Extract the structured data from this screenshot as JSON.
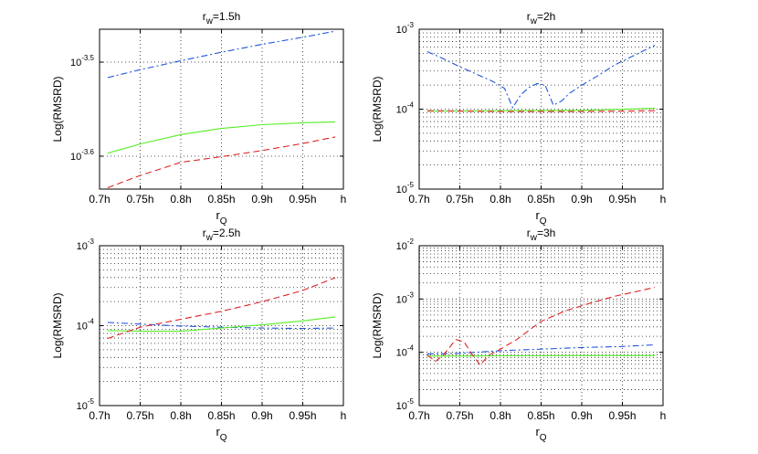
{
  "figure": {
    "ylabel": "Log(RMSRD)",
    "xlabel_main": "r",
    "xlabel_sub": "Q",
    "title_main": "r",
    "title_sub": "w"
  },
  "colors": {
    "blue": "#2255dd",
    "green": "#55ee22",
    "red": "#dd2222",
    "grid": "#222222",
    "axis": "#000000"
  },
  "chart_data": [
    {
      "type": "line",
      "title": "rw=1.5h",
      "title_sub_value": "=1.5h",
      "yscale": "log",
      "xlim": [
        0.7,
        1.0
      ],
      "ylim": [
        -3.635,
        -3.465
      ],
      "xticks": [
        0.7,
        0.75,
        0.8,
        0.85,
        0.9,
        0.95,
        1.0
      ],
      "xticklabels": [
        "0.7h",
        "0.75h",
        "0.8h",
        "0.85h",
        "0.9h",
        "0.95h",
        "h"
      ],
      "yticks": [
        {
          "value": -3.5,
          "base": "10",
          "exp": "-3.5"
        },
        {
          "value": -3.6,
          "base": "10",
          "exp": "-3.6"
        }
      ],
      "ygrid_minor": false,
      "xlabel": "rQ",
      "ylabel": "Log(RMSRD)",
      "series": [
        {
          "name": "blue",
          "style": "dashdot",
          "color": "#2255dd",
          "x": [
            0.71,
            0.75,
            0.8,
            0.85,
            0.9,
            0.95,
            0.99
          ],
          "y": [
            -3.5165,
            -3.508,
            -3.4985,
            -3.4895,
            -3.481,
            -3.4735,
            -3.467
          ]
        },
        {
          "name": "green",
          "style": "solid",
          "color": "#55ee22",
          "x": [
            0.71,
            0.75,
            0.8,
            0.85,
            0.9,
            0.95,
            0.99
          ],
          "y": [
            -3.5968,
            -3.587,
            -3.577,
            -3.5705,
            -3.5665,
            -3.5645,
            -3.5635
          ]
        },
        {
          "name": "red",
          "style": "dashed",
          "color": "#dd2222",
          "x": [
            0.71,
            0.75,
            0.8,
            0.85,
            0.9,
            0.95,
            0.99
          ],
          "y": [
            -3.6335,
            -3.6205,
            -3.6065,
            -3.6005,
            -3.594,
            -3.5865,
            -3.5795
          ]
        }
      ]
    },
    {
      "type": "line",
      "title": "rw=2h",
      "title_sub_value": "=2h",
      "yscale": "log",
      "xlim": [
        0.7,
        1.0
      ],
      "ylim": [
        -5,
        -3
      ],
      "xticks": [
        0.7,
        0.75,
        0.8,
        0.85,
        0.9,
        0.95,
        1.0
      ],
      "xticklabels": [
        "0.7h",
        "0.75h",
        "0.8h",
        "0.85h",
        "0.9h",
        "0.95h",
        "h"
      ],
      "yticks": [
        {
          "value": -3,
          "base": "10",
          "exp": "-3"
        },
        {
          "value": -4,
          "base": "10",
          "exp": "-4"
        },
        {
          "value": -5,
          "base": "10",
          "exp": "-5"
        }
      ],
      "ygrid_minor": true,
      "xlabel": "rQ",
      "ylabel": "Log(RMSRD)",
      "series": [
        {
          "name": "blue",
          "style": "dashdot",
          "color": "#2255dd",
          "x": [
            0.71,
            0.73,
            0.75,
            0.77,
            0.79,
            0.805,
            0.815,
            0.825,
            0.835,
            0.845,
            0.855,
            0.865,
            0.875,
            0.885,
            0.9,
            0.92,
            0.94,
            0.96,
            0.98,
            0.99
          ],
          "y": [
            -3.28,
            -3.37,
            -3.47,
            -3.56,
            -3.65,
            -3.74,
            -3.98,
            -3.82,
            -3.73,
            -3.68,
            -3.7,
            -3.95,
            -3.9,
            -3.8,
            -3.7,
            -3.58,
            -3.45,
            -3.35,
            -3.25,
            -3.2
          ]
        },
        {
          "name": "green",
          "style": "solid",
          "color": "#55ee22",
          "x": [
            0.71,
            0.8,
            0.9,
            0.99
          ],
          "y": [
            -4.025,
            -4.02,
            -4.015,
            -3.99
          ]
        },
        {
          "name": "red",
          "style": "dashed",
          "color": "#dd2222",
          "x": [
            0.71,
            0.8,
            0.9,
            0.99
          ],
          "y": [
            -4.02,
            -4.03,
            -4.03,
            -4.02
          ]
        }
      ]
    },
    {
      "type": "line",
      "title": "rw=2.5h",
      "title_sub_value": "=2.5h",
      "yscale": "log",
      "xlim": [
        0.7,
        1.0
      ],
      "ylim": [
        -5,
        -3
      ],
      "xticks": [
        0.7,
        0.75,
        0.8,
        0.85,
        0.9,
        0.95,
        1.0
      ],
      "xticklabels": [
        "0.7h",
        "0.75h",
        "0.8h",
        "0.85h",
        "0.9h",
        "0.95h",
        "h"
      ],
      "yticks": [
        {
          "value": -3,
          "base": "10",
          "exp": "-3"
        },
        {
          "value": -4,
          "base": "10",
          "exp": "-4"
        },
        {
          "value": -5,
          "base": "10",
          "exp": "-5"
        }
      ],
      "ygrid_minor": true,
      "xlabel": "rQ",
      "ylabel": "Log(RMSRD)",
      "series": [
        {
          "name": "blue",
          "style": "dashdot",
          "color": "#2255dd",
          "x": [
            0.71,
            0.75,
            0.8,
            0.85,
            0.9,
            0.95,
            0.99
          ],
          "y": [
            -3.96,
            -3.98,
            -4.005,
            -4.02,
            -4.03,
            -4.035,
            -4.03
          ]
        },
        {
          "name": "green",
          "style": "solid",
          "color": "#55ee22",
          "x": [
            0.71,
            0.75,
            0.8,
            0.85,
            0.9,
            0.95,
            0.99
          ],
          "y": [
            -4.06,
            -4.07,
            -4.07,
            -4.03,
            -3.99,
            -3.94,
            -3.89
          ]
        },
        {
          "name": "red",
          "style": "dashed",
          "color": "#dd2222",
          "x": [
            0.71,
            0.75,
            0.8,
            0.85,
            0.9,
            0.95,
            0.99
          ],
          "y": [
            -4.16,
            -4.02,
            -3.92,
            -3.82,
            -3.7,
            -3.56,
            -3.4
          ]
        }
      ]
    },
    {
      "type": "line",
      "title": "rw=3h",
      "title_sub_value": "=3h",
      "yscale": "log",
      "xlim": [
        0.7,
        1.0
      ],
      "ylim": [
        -5,
        -2
      ],
      "xticks": [
        0.7,
        0.75,
        0.8,
        0.85,
        0.9,
        0.95,
        1.0
      ],
      "xticklabels": [
        "0.7h",
        "0.75h",
        "0.8h",
        "0.85h",
        "0.9h",
        "0.95h",
        "h"
      ],
      "yticks": [
        {
          "value": -2,
          "base": "10",
          "exp": "-2"
        },
        {
          "value": -3,
          "base": "10",
          "exp": "-3"
        },
        {
          "value": -4,
          "base": "10",
          "exp": "-4"
        },
        {
          "value": -5,
          "base": "10",
          "exp": "-5"
        }
      ],
      "ygrid_minor": true,
      "xlabel": "rQ",
      "ylabel": "Log(RMSRD)",
      "series": [
        {
          "name": "blue",
          "style": "dashdot",
          "color": "#2255dd",
          "x": [
            0.71,
            0.75,
            0.8,
            0.85,
            0.9,
            0.95,
            0.99
          ],
          "y": [
            -4.03,
            -4.02,
            -3.97,
            -3.94,
            -3.91,
            -3.89,
            -3.86
          ]
        },
        {
          "name": "green",
          "style": "solid",
          "color": "#55ee22",
          "x": [
            0.71,
            0.8,
            0.9,
            0.99
          ],
          "y": [
            -4.07,
            -4.065,
            -4.06,
            -4.06
          ]
        },
        {
          "name": "red",
          "style": "dashed",
          "color": "#dd2222",
          "x": [
            0.71,
            0.72,
            0.73,
            0.745,
            0.755,
            0.765,
            0.775,
            0.785,
            0.8,
            0.82,
            0.85,
            0.88,
            0.91,
            0.94,
            0.97,
            0.99
          ],
          "y": [
            -4.05,
            -4.17,
            -4.05,
            -3.76,
            -3.8,
            -4.04,
            -4.24,
            -4.06,
            -3.94,
            -3.76,
            -3.42,
            -3.22,
            -3.08,
            -2.95,
            -2.85,
            -2.78
          ]
        }
      ]
    }
  ]
}
